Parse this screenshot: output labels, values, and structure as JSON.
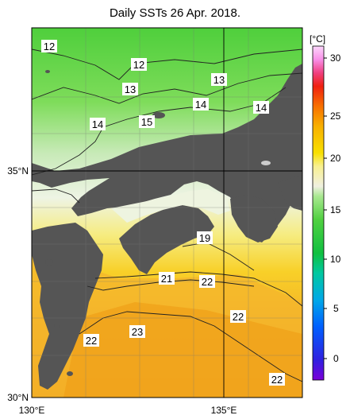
{
  "title": "Daily SSTs 26 Apr. 2018.",
  "axes": {
    "x_ticks": [
      "130°E",
      "135°E"
    ],
    "y_ticks": [
      "35°N",
      "30°N"
    ]
  },
  "colorbar": {
    "unit": "[°C]",
    "ticks": [
      "30",
      "25",
      "20",
      "15",
      "10",
      "5",
      "0"
    ],
    "range": [
      -2,
      32
    ]
  },
  "contour_labels": [
    "12",
    "12",
    "13",
    "13",
    "14",
    "14",
    "14",
    "15",
    "19",
    "21",
    "22",
    "22",
    "23",
    "22",
    "22"
  ],
  "colors": {
    "land": "#555555",
    "cold": "#55d040",
    "mid": "#e8f0dc",
    "warm": "#f8e030",
    "hot": "#f0a020"
  }
}
